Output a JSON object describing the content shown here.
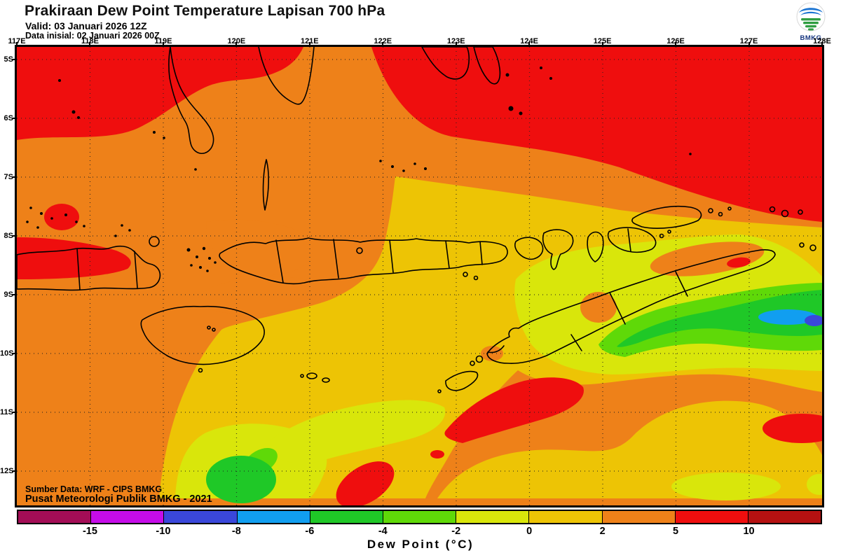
{
  "header": {
    "title": "Prakiraan Dew Point Temperature Lapisan 700 hPa",
    "valid": "Valid: 03 Januari 2026 12Z",
    "init": "Data inisial: 02 Januari 2026 00Z",
    "logo_text": "BMKG"
  },
  "map": {
    "lon_ticks": [
      "117E",
      "118E",
      "119E",
      "120E",
      "121E",
      "122E",
      "123E",
      "124E",
      "125E",
      "126E",
      "127E",
      "128E"
    ],
    "lat_ticks": [
      "5S",
      "6S",
      "7S",
      "8S",
      "9S",
      "10S",
      "11S",
      "12S"
    ],
    "source_line1": "Sumber Data: WRF - CIPS BMKG",
    "source_line2": "Pusat Meteorologi Publik BMKG - 2021"
  },
  "colorbar": {
    "label": "Dew Point (°C)",
    "tick_labels": [
      "-15",
      "-10",
      "-8",
      "-6",
      "-4",
      "-2",
      "0",
      "2",
      "5",
      "10"
    ],
    "segments": [
      {
        "name": "below-minus15",
        "color": "#A30D56"
      },
      {
        "name": "minus15-minus10",
        "color": "#C50CE8"
      },
      {
        "name": "minus10-minus8",
        "color": "#3A47DA"
      },
      {
        "name": "minus8-minus6",
        "color": "#119EF0"
      },
      {
        "name": "minus6-minus4",
        "color": "#1FC827"
      },
      {
        "name": "minus4-minus2",
        "color": "#5FD908"
      },
      {
        "name": "minus2-0",
        "color": "#D9E60B"
      },
      {
        "name": "0-2",
        "color": "#EDC405"
      },
      {
        "name": "2-5",
        "color": "#EE8119"
      },
      {
        "name": "5-10",
        "color": "#EF0E0E"
      },
      {
        "name": "above-10",
        "color": "#B51111"
      }
    ]
  },
  "palette": {
    "red": "#EF0E0E",
    "darkred": "#B51111",
    "orange": "#EE8119",
    "gold": "#EDC405",
    "yellowgreen": "#D9E60B",
    "chartreuse": "#5FD908",
    "green": "#1FC827",
    "lightblue": "#119EF0",
    "royalblue": "#3A47DA",
    "magenta": "#C50CE8",
    "darkmagenta": "#A30D56",
    "coast": "#000000",
    "logo_blue": "#1B74D2",
    "logo_green": "#2F9E41",
    "logo_text": "#16357F"
  },
  "chart_data": {
    "type": "heatmap",
    "title": "Prakiraan Dew Point Temperature Lapisan 700 hPa",
    "variable": "Dew Point (°C)",
    "level": "700 hPa",
    "valid_time": "03 Januari 2026 12Z",
    "initial_time": "02 Januari 2026 00Z",
    "x_axis": {
      "type": "longitude",
      "ticks": [
        "117E",
        "118E",
        "119E",
        "120E",
        "121E",
        "122E",
        "123E",
        "124E",
        "125E",
        "126E",
        "127E",
        "128E"
      ]
    },
    "y_axis": {
      "type": "latitude",
      "ticks": [
        "5S",
        "6S",
        "7S",
        "8S",
        "9S",
        "10S",
        "11S",
        "12S"
      ]
    },
    "legend_breaks_c": [
      -15,
      -10,
      -8,
      -6,
      -4,
      -2,
      0,
      2,
      5,
      10
    ],
    "legend_position": "bottom",
    "grid": "dotted",
    "field_summary": [
      {
        "region": "north of ~6.5S (Flores Sea / Banda Sea north)",
        "value_c": "5 to 10 (red)"
      },
      {
        "region": "band ~6.5S-8S",
        "value_c": "2 to 5 (orange)"
      },
      {
        "region": "central band ~8S-10S around island chain",
        "value_c": "0 to 2 (gold)"
      },
      {
        "region": "northeast of Timor ~9S-10S east of 124E",
        "value_c": "-4 to 0 (yellow-green) with -6 to -4 (green) core"
      },
      {
        "region": "small spot near 127.5E 9.8S",
        "value_c": "-8 to -6 (light blue)"
      },
      {
        "region": "southwest of Timor ~10.5S-11.5S",
        "value_c": "5 to 10 (red patches)"
      },
      {
        "region": "south ~11S-12.5S",
        "value_c": "0 to 5 (orange and gold)"
      },
      {
        "region": "bottom centre ~121.5E 12.3S",
        "value_c": "-6 to -4 (green blob)"
      }
    ]
  }
}
